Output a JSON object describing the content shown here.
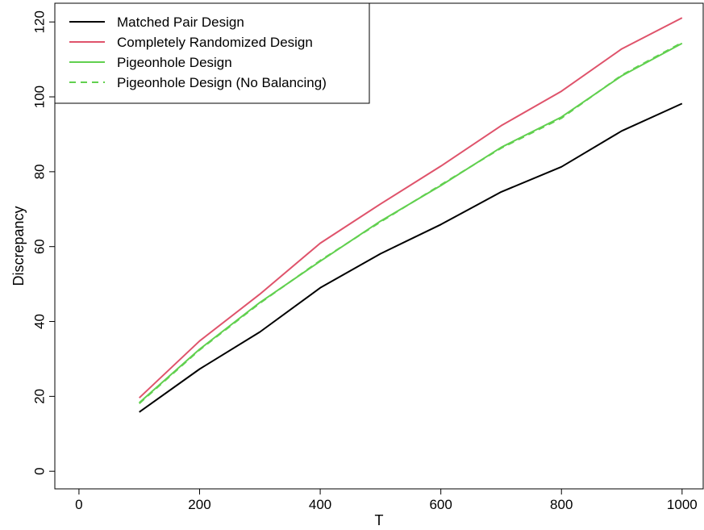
{
  "chart_data": {
    "type": "line",
    "title": "",
    "xlabel": "T",
    "ylabel": "Discrepancy",
    "xlim": [
      -40,
      1035
    ],
    "ylim": [
      -4.7,
      125
    ],
    "xticks": [
      0,
      200,
      400,
      600,
      800,
      1000
    ],
    "yticks": [
      0,
      20,
      40,
      60,
      80,
      100,
      120
    ],
    "x": [
      100,
      200,
      300,
      400,
      500,
      600,
      700,
      800,
      900,
      1000
    ],
    "legend_position": "top-left",
    "grid": false,
    "series": [
      {
        "name": "Matched Pair Design",
        "color": "#000000",
        "dash": "solid",
        "values": [
          15.8,
          27.3,
          37.2,
          49.0,
          58.1,
          65.9,
          74.6,
          81.3,
          90.9,
          98.2
        ]
      },
      {
        "name": "Completely Randomized Design",
        "color": "#DF536B",
        "dash": "solid",
        "values": [
          19.6,
          34.8,
          47.3,
          60.9,
          71.4,
          81.5,
          92.3,
          101.5,
          112.8,
          121.1
        ]
      },
      {
        "name": "Pigeonhole Design",
        "color": "#61D04F",
        "dash": "solid",
        "values": [
          18.3,
          32.6,
          45.1,
          56.1,
          66.8,
          76.3,
          86.5,
          94.6,
          105.6,
          114.3
        ]
      },
      {
        "name": "Pigeonhole Design (No Balancing)",
        "color": "#61D04F",
        "dash": "dashed",
        "values": [
          18.1,
          32.4,
          44.9,
          56.3,
          66.6,
          76.5,
          86.3,
          94.3,
          105.8,
          114.5
        ]
      }
    ]
  }
}
